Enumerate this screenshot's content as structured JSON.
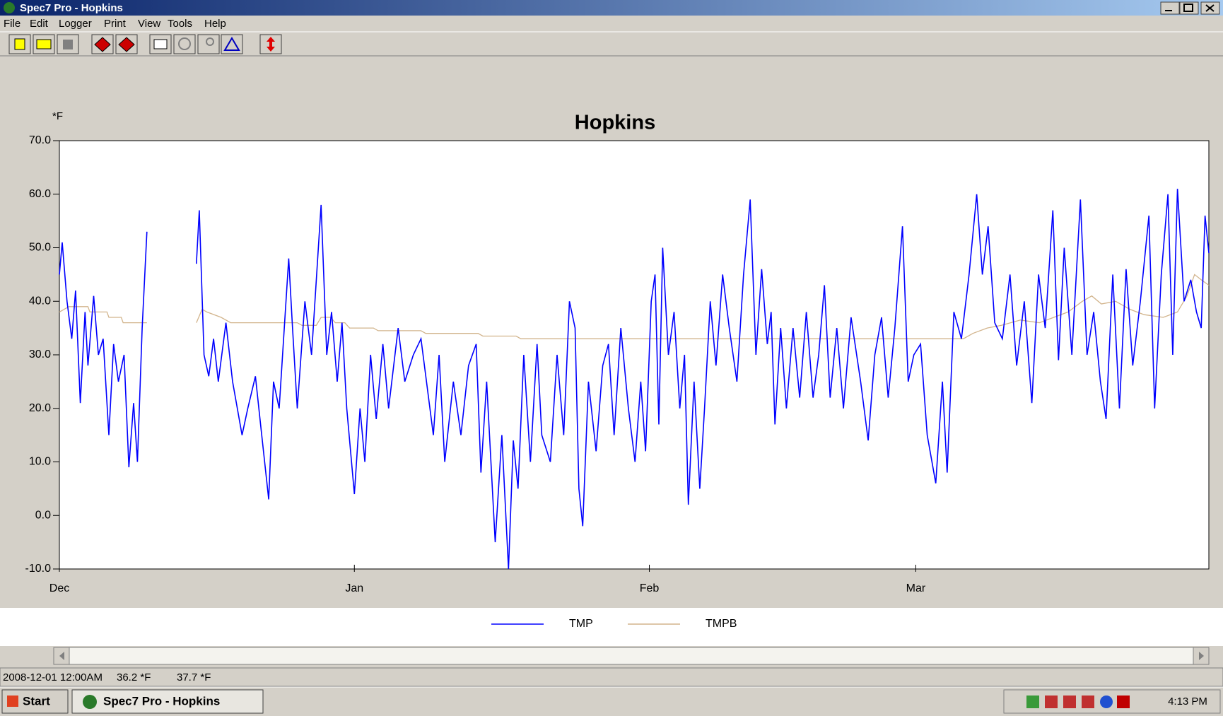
{
  "window": {
    "title": "Spec7 Pro - Hopkins"
  },
  "menu": [
    "File",
    "Edit",
    "Logger",
    "Print",
    "View",
    "Tools",
    "Help"
  ],
  "chart_data": {
    "type": "line",
    "title": "Hopkins",
    "y_label": "*F",
    "xlim": [
      0,
      120.8
    ],
    "xticks": [
      {
        "value": 0,
        "label": "Dec"
      },
      {
        "value": 31,
        "label": "Jan"
      },
      {
        "value": 62,
        "label": "Feb"
      },
      {
        "value": 90,
        "label": "Mar"
      }
    ],
    "ylim": [
      -10,
      70
    ],
    "yticks": [
      {
        "value": -10,
        "label": "-10.0"
      },
      {
        "value": 0,
        "label": "0.0"
      },
      {
        "value": 10,
        "label": "10.0"
      },
      {
        "value": 20,
        "label": "20.0"
      },
      {
        "value": 30,
        "label": "30.0"
      },
      {
        "value": 40,
        "label": "40.0"
      },
      {
        "value": 50,
        "label": "50.0"
      },
      {
        "value": 60,
        "label": "60.0"
      },
      {
        "value": 70,
        "label": "70.0"
      }
    ],
    "legend": "bottom",
    "series": [
      {
        "name": "TMP",
        "color": "#0000ff",
        "x": [
          0,
          0.3,
          0.8,
          1.3,
          1.7,
          2.2,
          2.7,
          3.0,
          3.6,
          4.1,
          4.6,
          5.2,
          5.7,
          6.2,
          6.8,
          7.3,
          7.8,
          8.2,
          8.7,
          9.2,
          11.8,
          14.4,
          14.7,
          15.2,
          15.7,
          16.2,
          16.7,
          17.5,
          18.2,
          19.2,
          19.8,
          20.6,
          21.2,
          22,
          22.5,
          23.1,
          24.1,
          24.5,
          25,
          25.8,
          26.5,
          27.5,
          28.1,
          28.6,
          29.2,
          29.7,
          30.2,
          31,
          31.6,
          32.1,
          32.7,
          33.3,
          34,
          34.6,
          35.6,
          36.3,
          37.2,
          38,
          39.3,
          39.9,
          40.5,
          41.4,
          42.2,
          43,
          43.8,
          44.3,
          44.9,
          45.8,
          46.5,
          47.2,
          47.7,
          48.2,
          48.8,
          49.5,
          50.2,
          50.7,
          51.6,
          52.3,
          53,
          53.6,
          54.2,
          54.6,
          55,
          55.6,
          56.4,
          57.1,
          57.7,
          58.3,
          59,
          59.8,
          60.5,
          61.1,
          61.6,
          62.2,
          62.6,
          63,
          63.4,
          64,
          64.6,
          65.2,
          65.7,
          66.1,
          66.7,
          67.3,
          67.8,
          68.4,
          69,
          69.7,
          70.4,
          71.2,
          71.9,
          72.6,
          73.2,
          73.8,
          74.4,
          74.8,
          75.2,
          75.8,
          76.4,
          77.1,
          77.8,
          78.5,
          79.2,
          79.8,
          80.4,
          81,
          81.7,
          82.4,
          83.2,
          84.2,
          85,
          85.7,
          86.4,
          87.1,
          87.8,
          88.6,
          89.2,
          89.8,
          90.5,
          91.2,
          92.1,
          92.8,
          93.3,
          94,
          94.8,
          95.6,
          96.4,
          97,
          97.6,
          98.3,
          99.1,
          99.9,
          100.6,
          101.4,
          102.2,
          102.9,
          103.6,
          104.4,
          105,
          105.6,
          106.4,
          107.3,
          108,
          108.7,
          109.4,
          110,
          110.7,
          111.4,
          112.1,
          112.8,
          113.6,
          114.5,
          115.1,
          115.8,
          116.5,
          117,
          117.5,
          118.2,
          118.9,
          119.5,
          120,
          120.4,
          120.8
        ],
        "values": [
          45,
          51,
          40,
          33,
          42,
          21,
          38,
          28,
          41,
          30,
          33,
          15,
          32,
          25,
          30,
          9,
          21,
          10,
          35,
          53,
          null,
          47,
          57,
          30,
          26,
          33,
          25,
          36,
          25,
          15,
          20,
          26,
          16,
          3,
          25,
          20,
          48,
          35,
          20,
          40,
          30,
          58,
          30,
          38,
          25,
          36,
          20,
          4,
          20,
          10,
          30,
          18,
          32,
          20,
          35,
          25,
          30,
          33,
          15,
          30,
          10,
          25,
          15,
          28,
          32,
          8,
          25,
          -5,
          15,
          -10,
          14,
          5,
          30,
          10,
          32,
          15,
          10,
          30,
          15,
          40,
          35,
          5,
          -2,
          25,
          12,
          28,
          32,
          15,
          35,
          20,
          10,
          25,
          12,
          40,
          45,
          17,
          50,
          30,
          38,
          20,
          30,
          2,
          25,
          5,
          20,
          40,
          28,
          45,
          35,
          25,
          45,
          59,
          30,
          46,
          32,
          38,
          17,
          35,
          20,
          35,
          22,
          38,
          22,
          30,
          43,
          22,
          35,
          20,
          37,
          25,
          14,
          30,
          37,
          22,
          35,
          54,
          25,
          30,
          32,
          15,
          6,
          25,
          8,
          38,
          33,
          45,
          60,
          45,
          54,
          36,
          33,
          45,
          28,
          40,
          21,
          45,
          35,
          57,
          29,
          50,
          30,
          59,
          30,
          38,
          25,
          18,
          45,
          20,
          46,
          28,
          40,
          56,
          20,
          45,
          60,
          30,
          61,
          40,
          44,
          38,
          35,
          56,
          49
        ]
      },
      {
        "name": "TMPB",
        "color": "#d2b48c",
        "x": [
          0,
          1,
          3,
          3.2,
          5,
          5.2,
          6.5,
          6.7,
          9.2,
          11.8,
          14.4,
          15,
          15.5,
          17,
          18,
          25,
          25.5,
          27,
          27.5,
          28.5,
          29,
          30,
          30.5,
          33,
          33.5,
          38,
          38.5,
          44,
          44.5,
          48,
          48.5,
          95,
          96,
          97.5,
          99,
          101,
          103,
          104.5,
          106,
          107.5,
          108.5,
          109.5,
          111,
          112.5,
          114,
          116,
          117.5,
          118.5,
          119.3,
          120,
          120.8
        ],
        "values": [
          38,
          39,
          39,
          38,
          38,
          37,
          37,
          36,
          36,
          null,
          36,
          38.5,
          38,
          37,
          36,
          36,
          35.5,
          35.5,
          37,
          37,
          36,
          36,
          35,
          35,
          34.5,
          34.5,
          34,
          34,
          33.5,
          33.5,
          33,
          33,
          34,
          35,
          35.5,
          36.5,
          36,
          37,
          38,
          40,
          41,
          39.5,
          40,
          38.5,
          37.5,
          37,
          38,
          41,
          45,
          44,
          43
        ]
      }
    ]
  },
  "status": {
    "time": "2008-12-01 12:00AM",
    "readings": [
      "36.2 *F",
      "37.7 *F"
    ]
  },
  "taskbar": {
    "start": "Start",
    "task": "Spec7 Pro - Hopkins",
    "clock": "4:13 PM"
  }
}
